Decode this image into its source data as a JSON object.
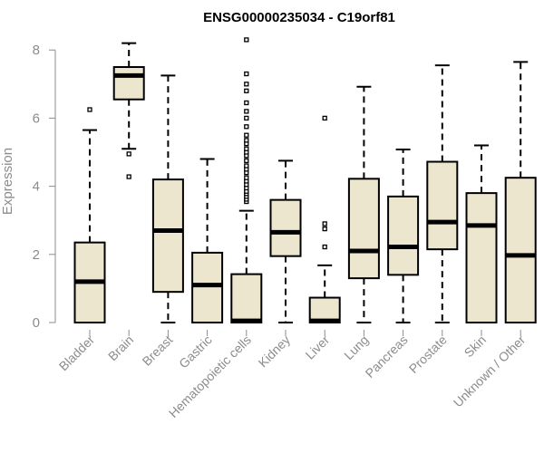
{
  "chart_data": {
    "type": "boxplot",
    "title": "ENSG00000235034 - C19orf81",
    "xlabel": "",
    "ylabel": "Expression",
    "ylim": [
      0,
      8.3
    ],
    "yticks": [
      0,
      2,
      4,
      6,
      8
    ],
    "box_fill": "#ede6cf",
    "categories": [
      "Bladder",
      "Brain",
      "Breast",
      "Gastric",
      "Hematopoietic cells",
      "Kidney",
      "Liver",
      "Lung",
      "Pancreas",
      "Prostate",
      "Skin",
      "Unknown / Other"
    ],
    "boxes": [
      {
        "category": "Bladder",
        "whisker_low": 0,
        "q1": 0,
        "median": 1.2,
        "q3": 2.35,
        "whisker_high": 5.65,
        "outliers": [
          6.25
        ]
      },
      {
        "category": "Brain",
        "whisker_low": 5.1,
        "q1": 6.55,
        "median": 7.25,
        "q3": 7.5,
        "whisker_high": 8.2,
        "outliers": [
          4.95,
          4.28
        ]
      },
      {
        "category": "Breast",
        "whisker_low": 0,
        "q1": 0.9,
        "median": 2.7,
        "q3": 4.2,
        "whisker_high": 7.25,
        "outliers": []
      },
      {
        "category": "Gastric",
        "whisker_low": 0,
        "q1": 0,
        "median": 1.1,
        "q3": 2.05,
        "whisker_high": 4.8,
        "outliers": []
      },
      {
        "category": "Hematopoietic cells",
        "whisker_low": 0,
        "q1": 0,
        "median": 0.05,
        "q3": 1.42,
        "whisker_high": 3.28,
        "outliers": [
          3.55,
          3.62,
          3.7,
          3.78,
          3.85,
          3.95,
          4.05,
          4.15,
          4.25,
          4.4,
          4.5,
          4.6,
          4.75,
          4.9,
          5.0,
          5.1,
          5.25,
          5.35,
          5.5,
          5.75,
          6.0,
          6.2,
          6.45,
          6.8,
          7.0,
          7.3,
          8.3
        ]
      },
      {
        "category": "Kidney",
        "whisker_low": 0,
        "q1": 1.95,
        "median": 2.65,
        "q3": 3.6,
        "whisker_high": 4.75,
        "outliers": []
      },
      {
        "category": "Liver",
        "whisker_low": 0,
        "q1": 0,
        "median": 0.05,
        "q3": 0.73,
        "whisker_high": 1.68,
        "outliers": [
          2.22,
          2.75,
          2.9,
          6.0
        ]
      },
      {
        "category": "Lung",
        "whisker_low": 0,
        "q1": 1.3,
        "median": 2.1,
        "q3": 4.22,
        "whisker_high": 6.92,
        "outliers": []
      },
      {
        "category": "Pancreas",
        "whisker_low": 0,
        "q1": 1.4,
        "median": 2.22,
        "q3": 3.7,
        "whisker_high": 5.08,
        "outliers": []
      },
      {
        "category": "Prostate",
        "whisker_low": 0,
        "q1": 2.15,
        "median": 2.95,
        "q3": 4.72,
        "whisker_high": 7.55,
        "outliers": []
      },
      {
        "category": "Skin",
        "whisker_low": 0,
        "q1": 0,
        "median": 2.85,
        "q3": 3.8,
        "whisker_high": 5.2,
        "outliers": []
      },
      {
        "category": "Unknown / Other",
        "whisker_low": 0,
        "q1": 0,
        "median": 1.97,
        "q3": 4.25,
        "whisker_high": 7.65,
        "outliers": []
      }
    ]
  }
}
